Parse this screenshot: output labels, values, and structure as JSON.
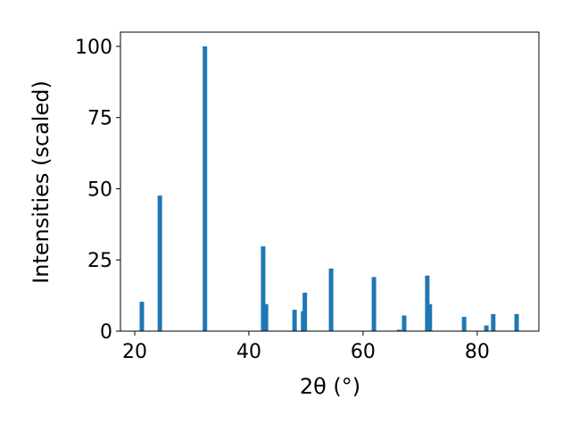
{
  "chart_data": {
    "type": "bar",
    "x_label": "2θ (°)",
    "y_label": "Intensities (scaled)",
    "x": [
      21.25,
      24.4,
      32.3,
      42.5,
      43.0,
      48.0,
      49.5,
      49.8,
      54.4,
      61.9,
      66.3,
      67.2,
      71.25,
      71.7,
      77.7,
      81.6,
      82.8,
      86.9
    ],
    "values": [
      10.3,
      47.6,
      100,
      29.8,
      9.5,
      7.5,
      7,
      13.5,
      22,
      19,
      0.5,
      5.5,
      19.5,
      9.5,
      5,
      2,
      6,
      6
    ],
    "color": "#1f77b4",
    "xlim": [
      17.5,
      90.8
    ],
    "xticks": [
      20,
      40,
      60,
      80
    ],
    "ylim": [
      0,
      105
    ],
    "yticks": [
      0,
      25,
      50,
      75,
      100
    ]
  }
}
